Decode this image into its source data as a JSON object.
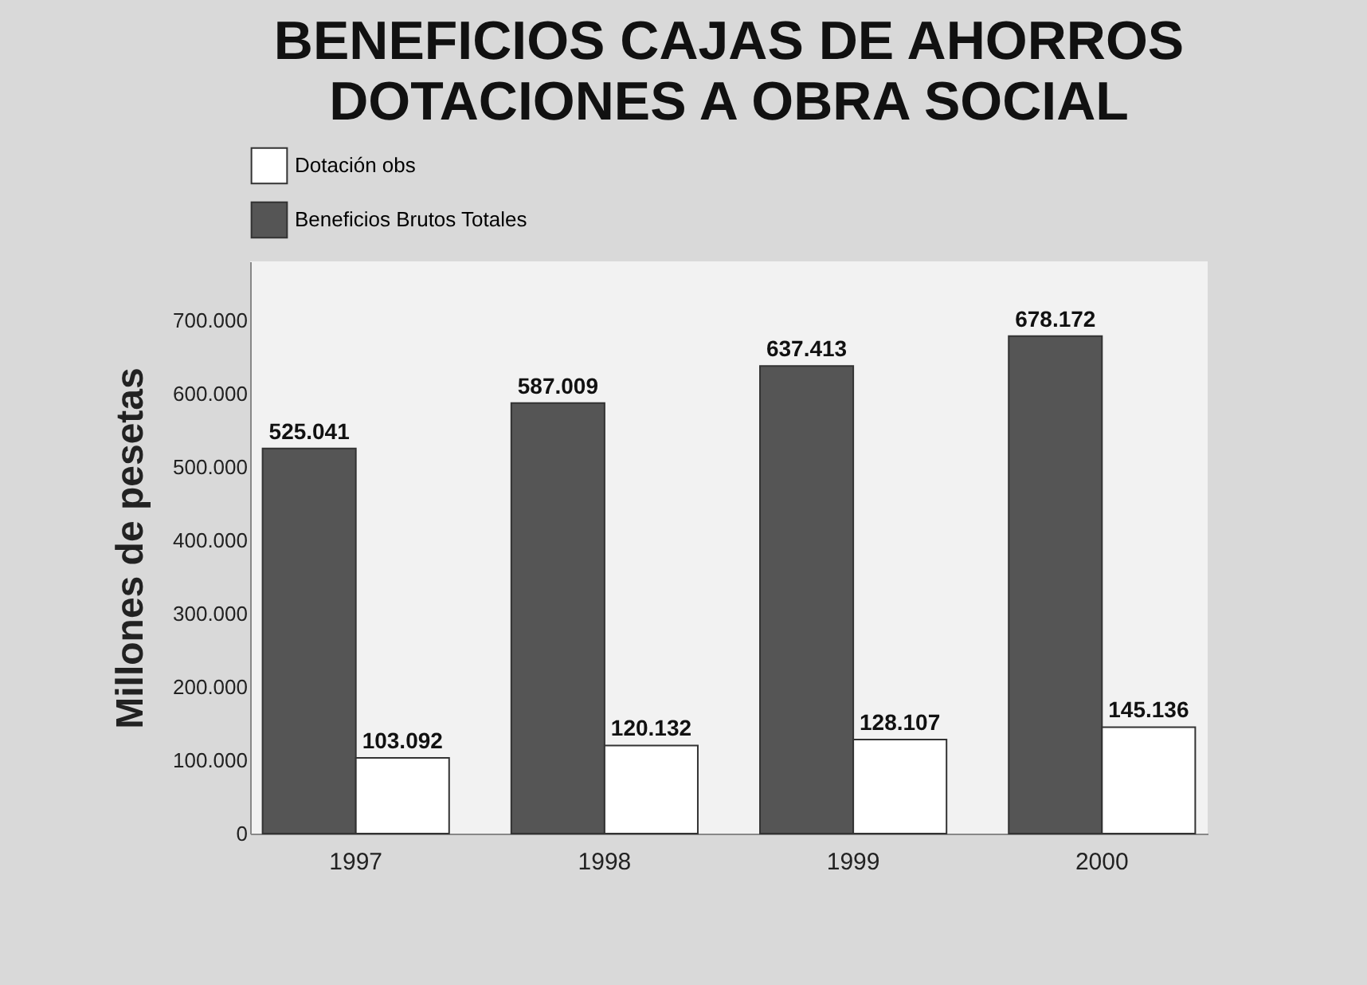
{
  "chart_data": {
    "type": "bar",
    "title": "BENEFICIOS CAJAS DE AHORROS\nDOTACIONES A OBRA SOCIAL",
    "ylabel": "Millones de pesetas",
    "categories": [
      "1997",
      "1998",
      "1999",
      "2000"
    ],
    "series": [
      {
        "name": "Beneficios Brutos Totales",
        "color": "#555555",
        "values": [
          525041,
          587009,
          637413,
          678172
        ],
        "value_labels": [
          "525.041",
          "587.009",
          "637.413",
          "678.172"
        ]
      },
      {
        "name": "Dotación obs",
        "color": "#ffffff",
        "values": [
          103092,
          120132,
          128107,
          145136
        ],
        "value_labels": [
          "103.092",
          "120.132",
          "128.107",
          "145.136"
        ]
      }
    ],
    "ylim": [
      0,
      780000
    ],
    "yticks": [
      0,
      {
        "value": 100000,
        "label": "100.000"
      },
      {
        "value": 200000,
        "label": "200.000"
      },
      {
        "value": 300000,
        "label": "300.000"
      },
      {
        "value": 400000,
        "label": "400.000"
      },
      {
        "value": 500000,
        "label": "500.000"
      },
      {
        "value": 600000,
        "label": "600.000"
      },
      {
        "value": 700000,
        "label": "700.000"
      }
    ],
    "grid": false,
    "legend": "top left"
  }
}
